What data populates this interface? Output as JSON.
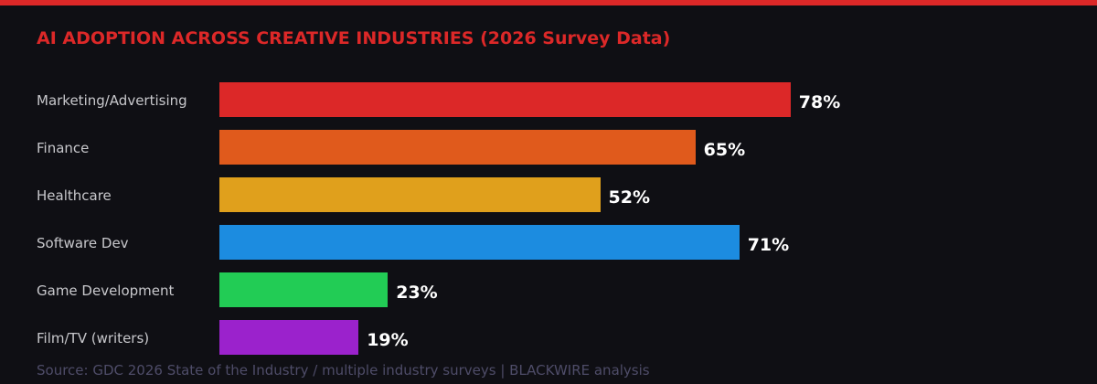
{
  "chart_data": {
    "type": "bar",
    "orientation": "horizontal",
    "title": "AI ADOPTION ACROSS CREATIVE INDUSTRIES (2026 Survey Data)",
    "categories": [
      "Marketing/Advertising",
      "Finance",
      "Healthcare",
      "Software Dev",
      "Game Development",
      "Film/TV (writers)"
    ],
    "values": [
      78,
      65,
      52,
      71,
      23,
      19
    ],
    "value_labels": [
      "78%",
      "65%",
      "52%",
      "71%",
      "23%",
      "19%"
    ],
    "colors": [
      "#dc2828",
      "#e05a1c",
      "#e0a01c",
      "#1c8ce0",
      "#22cc55",
      "#9b22cc"
    ],
    "unit": "%",
    "xlim": [
      0,
      100
    ],
    "grid": false,
    "source": "Source: GDC 2026 State of the Industry / multiple industry surveys | BLACKWIRE analysis"
  },
  "theme": {
    "accent": "#dc2828",
    "background": "#0f0f14"
  }
}
